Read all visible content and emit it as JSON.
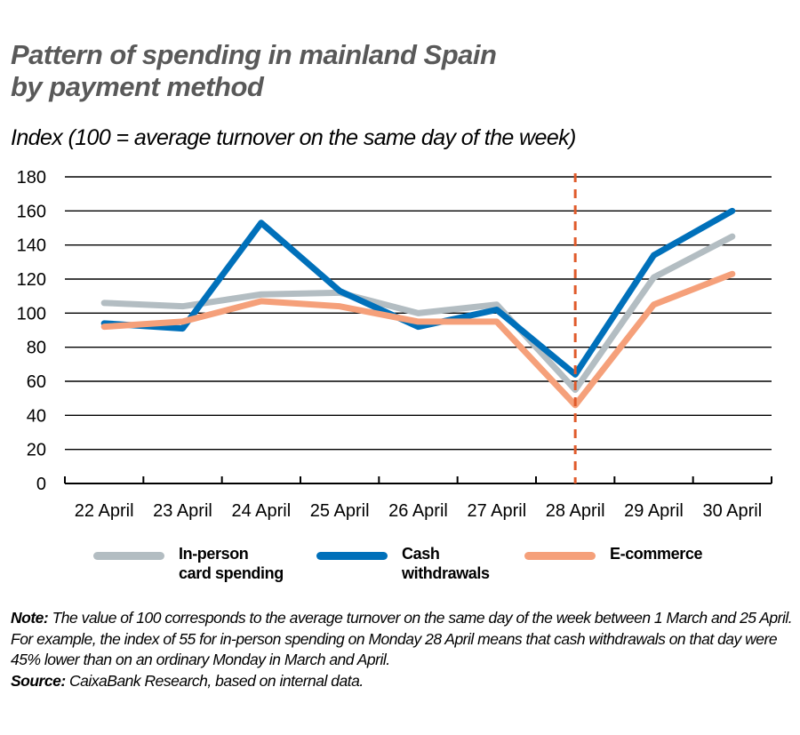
{
  "header": {
    "title_line1": "Pattern of spending in mainland Spain",
    "title_line2": "by payment method",
    "subtitle": "Index (100 = average turnover on the same day of the week)"
  },
  "legend": {
    "items": [
      {
        "label_line1": "In-person",
        "label_line2": "card spending",
        "color": "#B3BDC2"
      },
      {
        "label_line1": "Cash",
        "label_line2": "withdrawals",
        "color": "#0070BA"
      },
      {
        "label_line1": "E-commerce",
        "label_line2": "",
        "color": "#F5A07A"
      }
    ]
  },
  "footnote": {
    "note_label": "Note:",
    "note_text": "The value of 100 corresponds to the average turnover on the same day of the week between 1 March and 25 April. For example, the index of 55 for in-person spending on Monday 28 April means that cash withdrawals on that day were 45% lower than on an ordinary Monday in March and April.",
    "source_label": "Source:",
    "source_text": "CaixaBank Research, based on internal data."
  },
  "chart_data": {
    "type": "line",
    "title": "Pattern of spending in mainland Spain by payment method",
    "subtitle": "Index (100 = average turnover on the same day of the week)",
    "xlabel": "",
    "ylabel": "",
    "categories": [
      "22 April",
      "23 April",
      "24 April",
      "25 April",
      "26 April",
      "27 April",
      "28 April",
      "29 April",
      "30 April"
    ],
    "yticks": [
      0,
      20,
      40,
      60,
      80,
      100,
      120,
      140,
      160,
      180
    ],
    "ylim": [
      0,
      180
    ],
    "grid": "horizontal",
    "legend_position": "bottom",
    "series": [
      {
        "name": "In-person card spending",
        "color": "#B3BDC2",
        "values": [
          106,
          104,
          111,
          112,
          100,
          105,
          55,
          121,
          145
        ]
      },
      {
        "name": "Cash withdrawals",
        "color": "#0070BA",
        "values": [
          94,
          91,
          153,
          113,
          92,
          102,
          64,
          134,
          160
        ]
      },
      {
        "name": "E-commerce",
        "color": "#F5A07A",
        "values": [
          92,
          95,
          107,
          104,
          95,
          95,
          46,
          105,
          123
        ]
      }
    ],
    "annotations": [
      {
        "type": "vertical-dashed-line",
        "x": "28 April",
        "color": "#E05A2B"
      }
    ]
  }
}
